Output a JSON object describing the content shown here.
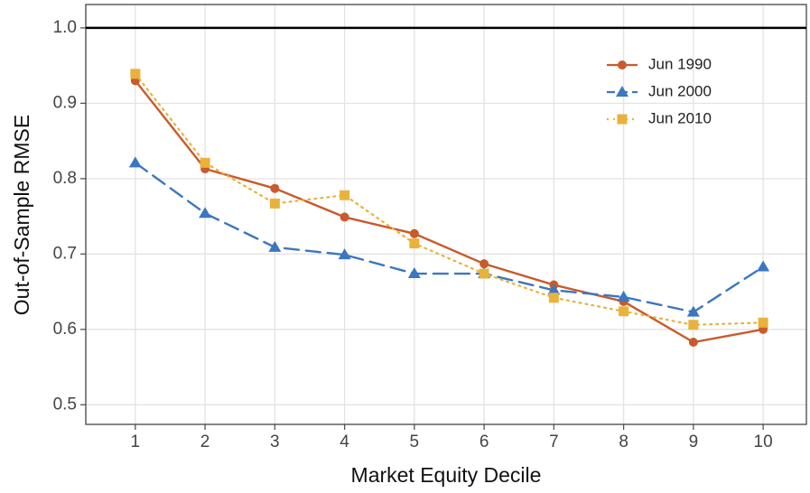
{
  "chart_data": {
    "type": "line",
    "x_label": "Market Equity Decile",
    "y_label": "Out-of-Sample RMSE",
    "x": [
      1,
      2,
      3,
      4,
      5,
      6,
      7,
      8,
      9,
      10
    ],
    "series": [
      {
        "name": "Jun 1990",
        "color": "#c95a2c",
        "dash": "solid",
        "marker": "circle",
        "values": [
          0.93,
          0.813,
          0.787,
          0.749,
          0.727,
          0.687,
          0.659,
          0.637,
          0.583,
          0.6
        ]
      },
      {
        "name": "Jun 2000",
        "color": "#3b77c0",
        "dash": "dashed",
        "marker": "triangle",
        "values": [
          0.821,
          0.754,
          0.709,
          0.699,
          0.674,
          0.674,
          0.652,
          0.643,
          0.623,
          0.683
        ]
      },
      {
        "name": "Jun 2010",
        "color": "#e8b23c",
        "dash": "dotted",
        "marker": "square",
        "values": [
          0.939,
          0.821,
          0.767,
          0.778,
          0.714,
          0.674,
          0.642,
          0.624,
          0.606,
          0.609
        ]
      }
    ],
    "xlim": [
      0.29,
      10.62
    ],
    "ylim": [
      0.474,
      1.031
    ],
    "xticks": [
      1,
      2,
      3,
      4,
      5,
      6,
      7,
      8,
      9,
      10
    ],
    "yticks": [
      0.5,
      0.6,
      0.7,
      0.8,
      0.9,
      {
        "value": 1,
        "label": "1.0"
      }
    ],
    "reference_line": 1,
    "grid": true,
    "legend": "upper right"
  }
}
